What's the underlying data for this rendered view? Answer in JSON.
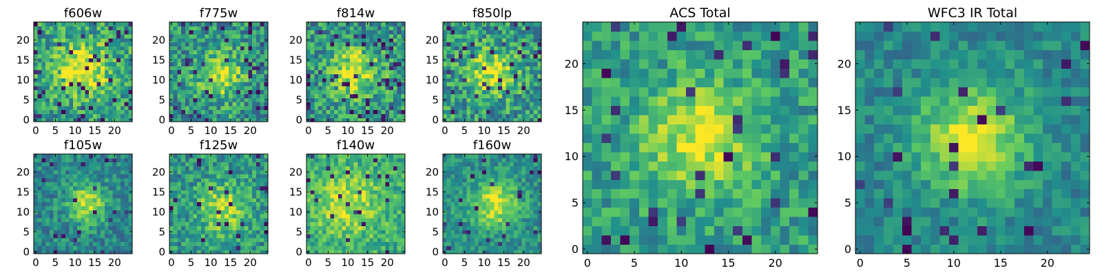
{
  "figure": {
    "colormap": "viridis",
    "colors": [
      "#440154",
      "#3b528b",
      "#21918c",
      "#5ec962",
      "#fde725"
    ]
  },
  "chart_data": [
    {
      "type": "heatmap",
      "title": "f606w",
      "size": 25,
      "xticks": [
        0,
        5,
        10,
        15,
        20
      ],
      "yticks": [
        0,
        5,
        10,
        15,
        20
      ],
      "xlim": [
        -0.5,
        24.5
      ],
      "ylim": [
        -0.5,
        24.5
      ],
      "center": [
        12,
        13
      ],
      "peak": 0.45,
      "noise": 0.24,
      "base": 0.56,
      "spread": 4.5,
      "hole_rate": 0.07,
      "seed": 11
    },
    {
      "type": "heatmap",
      "title": "f775w",
      "size": 25,
      "xticks": [
        0,
        5,
        10,
        15,
        20
      ],
      "yticks": [
        0,
        5,
        10,
        15,
        20
      ],
      "xlim": [
        -0.5,
        24.5
      ],
      "ylim": [
        -0.5,
        24.5
      ],
      "center": [
        12,
        11
      ],
      "peak": 0.42,
      "noise": 0.24,
      "base": 0.52,
      "spread": 4.0,
      "hole_rate": 0.07,
      "seed": 23
    },
    {
      "type": "heatmap",
      "title": "f814w",
      "size": 25,
      "xticks": [
        0,
        5,
        10,
        15,
        20
      ],
      "yticks": [
        0,
        5,
        10,
        15,
        20
      ],
      "xlim": [
        -0.5,
        24.5
      ],
      "ylim": [
        -0.5,
        24.5
      ],
      "center": [
        12,
        12
      ],
      "peak": 0.4,
      "noise": 0.25,
      "base": 0.52,
      "spread": 4.5,
      "hole_rate": 0.08,
      "seed": 37
    },
    {
      "type": "heatmap",
      "title": "f850lp",
      "size": 25,
      "xticks": [
        0,
        5,
        10,
        15,
        20
      ],
      "yticks": [
        0,
        5,
        10,
        15,
        20
      ],
      "xlim": [
        -0.5,
        24.5
      ],
      "ylim": [
        -0.5,
        24.5
      ],
      "center": [
        12,
        12
      ],
      "peak": 0.4,
      "noise": 0.25,
      "base": 0.54,
      "spread": 4.0,
      "hole_rate": 0.08,
      "seed": 41
    },
    {
      "type": "heatmap",
      "title": "f105w",
      "size": 25,
      "xticks": [
        0,
        5,
        10,
        15,
        20
      ],
      "yticks": [
        0,
        5,
        10,
        15,
        20
      ],
      "xlim": [
        -0.5,
        24.5
      ],
      "ylim": [
        -0.5,
        24.5
      ],
      "center": [
        13,
        12
      ],
      "peak": 0.45,
      "noise": 0.17,
      "base": 0.46,
      "spread": 3.5,
      "hole_rate": 0.04,
      "seed": 53
    },
    {
      "type": "heatmap",
      "title": "f125w",
      "size": 25,
      "xticks": [
        0,
        5,
        10,
        15,
        20
      ],
      "yticks": [
        0,
        5,
        10,
        15,
        20
      ],
      "xlim": [
        -0.5,
        24.5
      ],
      "ylim": [
        -0.5,
        24.5
      ],
      "center": [
        13,
        11
      ],
      "peak": 0.35,
      "noise": 0.2,
      "base": 0.52,
      "spread": 4.5,
      "hole_rate": 0.04,
      "seed": 61
    },
    {
      "type": "heatmap",
      "title": "f140w",
      "size": 25,
      "xticks": [
        0,
        5,
        10,
        15,
        20
      ],
      "yticks": [
        0,
        5,
        10,
        15,
        20
      ],
      "xlim": [
        -0.5,
        24.5
      ],
      "ylim": [
        -0.5,
        24.5
      ],
      "center": [
        10,
        12
      ],
      "peak": 0.3,
      "noise": 0.18,
      "base": 0.6,
      "spread": 6.0,
      "hole_rate": 0.03,
      "seed": 73
    },
    {
      "type": "heatmap",
      "title": "f160w",
      "size": 25,
      "xticks": [
        0,
        5,
        10,
        15,
        20
      ],
      "yticks": [
        0,
        5,
        10,
        15,
        20
      ],
      "xlim": [
        -0.5,
        24.5
      ],
      "ylim": [
        -0.5,
        24.5
      ],
      "center": [
        13,
        12
      ],
      "peak": 0.45,
      "noise": 0.16,
      "base": 0.5,
      "spread": 4.0,
      "hole_rate": 0.03,
      "seed": 89
    },
    {
      "type": "heatmap",
      "title": "ACS Total",
      "size": 25,
      "xticks": [
        0,
        5,
        10,
        15,
        20
      ],
      "yticks": [
        0,
        5,
        10,
        15,
        20
      ],
      "xlim": [
        -0.5,
        24.5
      ],
      "ylim": [
        -0.5,
        24.5
      ],
      "center": [
        12,
        12
      ],
      "peak": 0.42,
      "noise": 0.18,
      "base": 0.55,
      "spread": 4.0,
      "hole_rate": 0.05,
      "seed": 97
    },
    {
      "type": "heatmap",
      "title": "WFC3 IR Total",
      "size": 25,
      "xticks": [
        0,
        5,
        10,
        15,
        20
      ],
      "yticks": [
        0,
        5,
        10,
        15,
        20
      ],
      "xlim": [
        -0.5,
        24.5
      ],
      "ylim": [
        -0.5,
        24.5
      ],
      "center": [
        12,
        12
      ],
      "peak": 0.5,
      "noise": 0.13,
      "base": 0.46,
      "spread": 4.0,
      "hole_rate": 0.03,
      "seed": 107
    }
  ]
}
